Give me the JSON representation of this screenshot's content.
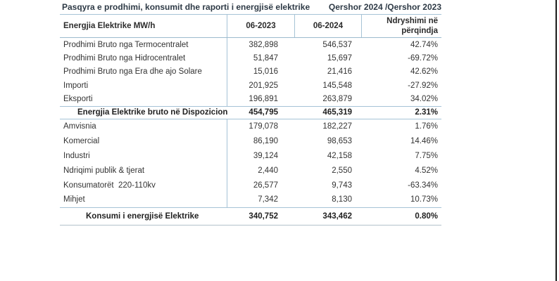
{
  "title": {
    "left": "Pasqyra e prodhimi, konsumit dhe raporti i energjisë elektrike",
    "right": "Qershor 2024 /Qershor 2023"
  },
  "table": {
    "header": {
      "col1": "Energjia Elektrike MW/h",
      "col2": "06-2023",
      "col3": "06-2024",
      "col4_line1": "Ndryshimi në",
      "col4_line2": "përqindja"
    },
    "rows": [
      {
        "label": "Prodhimi Bruto nga Termocentralet",
        "y2023": "382,898",
        "y2024": "546,537",
        "change": "42.74%"
      },
      {
        "label": "Prodhimi Bruto nga Hidrocentralet",
        "y2023": "51,847",
        "y2024": "15,697",
        "change": "-69.72%"
      },
      {
        "label": "Prodhimi Bruto nga Era dhe ajo Solare",
        "y2023": "15,016",
        "y2024": "21,416",
        "change": "42.62%"
      },
      {
        "label": "Importi",
        "y2023": "201,925",
        "y2024": "145,548",
        "change": "-27.92%"
      },
      {
        "label": "Eksporti",
        "y2023": "196,891",
        "y2024": "263,879",
        "change": "34.02%"
      },
      {
        "label": "Energjia Elektrike bruto në Dispozicion",
        "y2023": "454,795",
        "y2024": "465,319",
        "change": "2.31%"
      },
      {
        "label": "Amvisnia",
        "y2023": "179,078",
        "y2024": "182,227",
        "change": "1.76%"
      },
      {
        "label": "Komercial",
        "y2023": "86,190",
        "y2024": "98,653",
        "change": "14.46%"
      },
      {
        "label": "Industri",
        "y2023": "39,124",
        "y2024": "42,158",
        "change": "7.75%"
      },
      {
        "label": "Ndriqimi publik & tjerat",
        "y2023": "2,440",
        "y2024": "2,550",
        "change": "4.52%"
      },
      {
        "label": "Konsumatorët  220-110kv",
        "y2023": "26,577",
        "y2024": "9,743",
        "change": "-63.34%"
      },
      {
        "label": "Mihjet",
        "y2023": "7,342",
        "y2024": "8,130",
        "change": "10.73%"
      },
      {
        "label": "Konsumi i energjisë Elektrike",
        "y2023": "340,752",
        "y2024": "343,462",
        "change": "0.80%"
      }
    ]
  },
  "colors": {
    "accent_line": "#a6c3d6",
    "page_edge": "#1b1b1b",
    "title_text": "#2e3a46",
    "body_text": "#333333"
  }
}
